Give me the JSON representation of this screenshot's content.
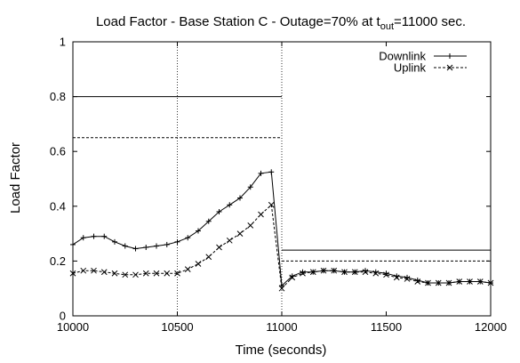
{
  "chart_data": {
    "type": "line",
    "title": {
      "prefix": "Load Factor - Base Station C - Outage=70% at t",
      "subscript": "out",
      "suffix": "=11000 sec."
    },
    "xlabel": "Time (seconds)",
    "ylabel": "Load Factor",
    "xlim": [
      10000,
      12000
    ],
    "ylim": [
      0,
      1
    ],
    "xticks": [
      10000,
      10500,
      11000,
      11500,
      12000
    ],
    "yticks": [
      0,
      0.2,
      0.4,
      0.6,
      0.8,
      1
    ],
    "ytick_labels": [
      "0",
      "0.2",
      "0.4",
      "0.6",
      "0.8",
      "1"
    ],
    "grid": false,
    "legend_position": "top-right",
    "vertical_reference_lines": [
      10500,
      11000
    ],
    "series": [
      {
        "name": "Downlink",
        "line_style": "solid",
        "marker": "plus",
        "x": [
          10000,
          10050,
          10100,
          10150,
          10200,
          10250,
          10300,
          10350,
          10400,
          10450,
          10500,
          10550,
          10600,
          10650,
          10700,
          10750,
          10800,
          10850,
          10900,
          10950,
          11000,
          11050,
          11100,
          11150,
          11200,
          11250,
          11300,
          11350,
          11400,
          11450,
          11500,
          11550,
          11600,
          11650,
          11700,
          11750,
          11800,
          11850,
          11900,
          11950,
          12000
        ],
        "y": [
          0.26,
          0.285,
          0.29,
          0.29,
          0.27,
          0.255,
          0.245,
          0.25,
          0.255,
          0.26,
          0.27,
          0.285,
          0.31,
          0.345,
          0.38,
          0.405,
          0.43,
          0.47,
          0.52,
          0.525,
          0.11,
          0.145,
          0.16,
          0.16,
          0.165,
          0.165,
          0.16,
          0.16,
          0.165,
          0.16,
          0.155,
          0.145,
          0.14,
          0.13,
          0.12,
          0.12,
          0.12,
          0.125,
          0.125,
          0.125,
          0.12
        ]
      },
      {
        "name": "Uplink",
        "line_style": "dashed",
        "marker": "cross",
        "x": [
          10000,
          10050,
          10100,
          10150,
          10200,
          10250,
          10300,
          10350,
          10400,
          10450,
          10500,
          10550,
          10600,
          10650,
          10700,
          10750,
          10800,
          10850,
          10900,
          10950,
          11000,
          11050,
          11100,
          11150,
          11200,
          11250,
          11300,
          11350,
          11400,
          11450,
          11500,
          11550,
          11600,
          11650,
          11700,
          11750,
          11800,
          11850,
          11900,
          11950,
          12000
        ],
        "y": [
          0.155,
          0.165,
          0.165,
          0.16,
          0.155,
          0.15,
          0.15,
          0.155,
          0.155,
          0.155,
          0.155,
          0.17,
          0.19,
          0.215,
          0.25,
          0.275,
          0.3,
          0.33,
          0.37,
          0.405,
          0.1,
          0.14,
          0.155,
          0.16,
          0.165,
          0.165,
          0.16,
          0.16,
          0.16,
          0.155,
          0.15,
          0.14,
          0.135,
          0.125,
          0.12,
          0.12,
          0.12,
          0.125,
          0.125,
          0.125,
          0.12
        ]
      }
    ],
    "capacity_lines": [
      {
        "series": "Downlink",
        "line_style": "solid",
        "segments": [
          {
            "x": [
              10000,
              11000
            ],
            "y": 0.8
          },
          {
            "x": [
              11000,
              12000
            ],
            "y": 0.24
          }
        ]
      },
      {
        "series": "Uplink",
        "line_style": "dashed",
        "segments": [
          {
            "x": [
              10000,
              11000
            ],
            "y": 0.65
          },
          {
            "x": [
              11000,
              12000
            ],
            "y": 0.2
          }
        ]
      }
    ]
  }
}
